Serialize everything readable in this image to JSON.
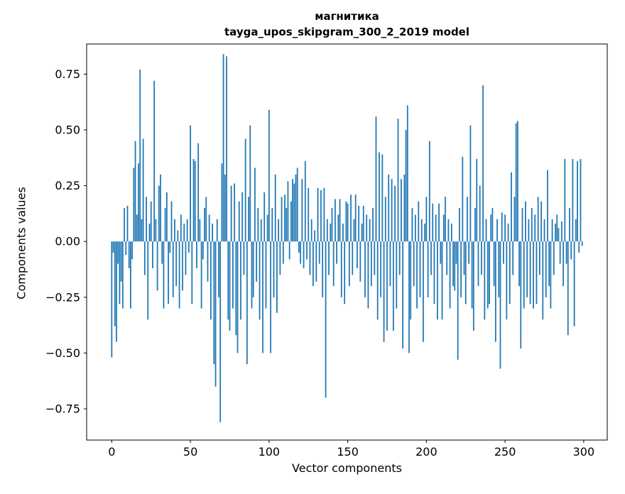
{
  "chart_data": {
    "type": "bar",
    "title_line1": "магнитика",
    "title_line2": "tayga_upos_skipgram_300_2_2019 model",
    "xlabel": "Vector components",
    "ylabel": "Components values",
    "xlim": [
      -15.95,
      314.95
    ],
    "ylim": [
      -0.89,
      0.885
    ],
    "xticks": [
      0,
      50,
      100,
      150,
      200,
      250,
      300
    ],
    "yticks": [
      0.75,
      0.5,
      0.25,
      0.0,
      -0.25,
      -0.5,
      -0.75
    ],
    "bar_color": "#1f77b4",
    "legend": "none",
    "grid": false,
    "values": [
      -0.52,
      -0.05,
      -0.38,
      -0.45,
      -0.1,
      -0.28,
      -0.18,
      -0.3,
      0.15,
      -0.06,
      0.16,
      -0.12,
      -0.3,
      -0.08,
      0.33,
      0.45,
      0.12,
      0.35,
      0.77,
      0.1,
      0.46,
      -0.15,
      0.2,
      -0.35,
      0.08,
      0.18,
      -0.12,
      0.72,
      0.1,
      -0.22,
      0.25,
      0.3,
      -0.1,
      -0.3,
      0.15,
      0.22,
      -0.28,
      -0.05,
      0.18,
      -0.25,
      0.1,
      -0.2,
      0.05,
      -0.3,
      0.12,
      -0.22,
      0.08,
      -0.15,
      0.1,
      -0.05,
      0.52,
      -0.28,
      0.37,
      0.36,
      -0.12,
      0.44,
      0.1,
      -0.3,
      -0.08,
      0.15,
      0.2,
      -0.18,
      0.12,
      -0.35,
      0.08,
      -0.55,
      -0.65,
      0.1,
      -0.25,
      -0.81,
      0.35,
      0.84,
      0.3,
      0.83,
      -0.35,
      -0.4,
      0.25,
      -0.3,
      0.26,
      -0.42,
      -0.5,
      0.18,
      -0.35,
      0.22,
      -0.15,
      0.46,
      -0.55,
      0.2,
      0.52,
      -0.3,
      -0.25,
      0.33,
      -0.18,
      0.15,
      -0.35,
      0.1,
      -0.5,
      0.22,
      -0.3,
      0.12,
      0.59,
      -0.5,
      0.15,
      -0.25,
      0.3,
      -0.32,
      0.1,
      -0.15,
      0.2,
      -0.1,
      0.21,
      0.15,
      0.27,
      -0.08,
      0.18,
      0.28,
      0.26,
      0.3,
      0.33,
      -0.05,
      -0.1,
      0.28,
      -0.12,
      0.36,
      -0.08,
      0.24,
      -0.15,
      0.1,
      -0.2,
      0.05,
      -0.18,
      0.24,
      -0.1,
      0.23,
      -0.25,
      0.24,
      -0.7,
      0.1,
      -0.15,
      0.08,
      0.15,
      -0.2,
      0.19,
      -0.1,
      0.12,
      0.19,
      -0.25,
      0.08,
      -0.28,
      0.18,
      0.17,
      -0.2,
      0.21,
      -0.15,
      0.1,
      0.21,
      -0.12,
      0.16,
      -0.18,
      0.08,
      0.16,
      -0.25,
      0.12,
      -0.3,
      0.1,
      -0.2,
      0.15,
      -0.15,
      0.56,
      -0.35,
      0.4,
      -0.25,
      0.39,
      -0.45,
      0.2,
      -0.4,
      0.3,
      -0.2,
      0.28,
      -0.4,
      0.25,
      -0.3,
      0.55,
      -0.15,
      0.28,
      -0.48,
      0.3,
      0.5,
      0.61,
      -0.5,
      -0.35,
      0.15,
      -0.2,
      0.12,
      -0.3,
      0.18,
      -0.25,
      0.1,
      -0.45,
      0.08,
      0.2,
      -0.25,
      0.45,
      -0.15,
      0.17,
      -0.28,
      0.12,
      -0.35,
      0.17,
      -0.1,
      -0.35,
      0.12,
      0.2,
      -0.15,
      0.1,
      -0.3,
      0.08,
      -0.2,
      -0.22,
      -0.1,
      -0.53,
      0.15,
      -0.25,
      0.38,
      -0.15,
      -0.28,
      0.2,
      -0.1,
      0.52,
      -0.3,
      -0.4,
      0.15,
      0.37,
      -0.2,
      0.25,
      -0.15,
      0.7,
      -0.35,
      0.1,
      -0.3,
      -0.28,
      0.12,
      0.15,
      -0.2,
      -0.45,
      0.1,
      -0.25,
      -0.57,
      0.13,
      -0.1,
      0.12,
      -0.35,
      0.08,
      -0.28,
      0.31,
      -0.15,
      0.2,
      0.53,
      0.54,
      -0.2,
      -0.48,
      0.15,
      -0.3,
      0.18,
      -0.25,
      0.1,
      -0.28,
      0.15,
      -0.3,
      0.12,
      -0.28,
      0.2,
      -0.15,
      0.18,
      -0.35,
      0.1,
      -0.25,
      0.32,
      -0.2,
      -0.3,
      0.1,
      -0.15,
      0.08,
      0.12,
      0.06,
      -0.1,
      0.09,
      -0.2,
      0.37,
      -0.1,
      -0.42,
      0.15,
      -0.08,
      0.37,
      -0.38,
      0.1,
      0.36,
      -0.05,
      0.37,
      -0.02
    ]
  }
}
